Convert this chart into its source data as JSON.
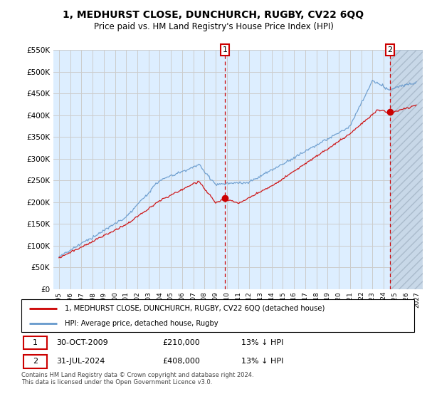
{
  "title": "1, MEDHURST CLOSE, DUNCHURCH, RUGBY, CV22 6QQ",
  "subtitle": "Price paid vs. HM Land Registry's House Price Index (HPI)",
  "legend_line1": "1, MEDHURST CLOSE, DUNCHURCH, RUGBY, CV22 6QQ (detached house)",
  "legend_line2": "HPI: Average price, detached house, Rugby",
  "footnote": "Contains HM Land Registry data © Crown copyright and database right 2024.\nThis data is licensed under the Open Government Licence v3.0.",
  "transaction1": {
    "label": "1",
    "date": "30-OCT-2009",
    "price": "£210,000",
    "hpi": "13% ↓ HPI"
  },
  "transaction2": {
    "label": "2",
    "date": "31-JUL-2024",
    "price": "£408,000",
    "hpi": "13% ↓ HPI"
  },
  "marker1_x": 2009.83,
  "marker2_x": 2024.58,
  "marker1_y": 210000,
  "marker2_y": 408000,
  "ylim": [
    0,
    550000
  ],
  "xlim_start": 1994.5,
  "xlim_end": 2027.5,
  "yticks": [
    0,
    50000,
    100000,
    150000,
    200000,
    250000,
    300000,
    350000,
    400000,
    450000,
    500000,
    550000
  ],
  "xtick_years": [
    1995,
    1996,
    1997,
    1998,
    1999,
    2000,
    2001,
    2002,
    2003,
    2004,
    2005,
    2006,
    2007,
    2008,
    2009,
    2010,
    2011,
    2012,
    2013,
    2014,
    2015,
    2016,
    2017,
    2018,
    2019,
    2020,
    2021,
    2022,
    2023,
    2024,
    2025,
    2026,
    2027
  ],
  "grid_color": "#cccccc",
  "hpi_color": "#6699cc",
  "price_color": "#cc0000",
  "bg_color": "#ddeeff",
  "future_bg_color": "#ccddee",
  "white": "#ffffff"
}
